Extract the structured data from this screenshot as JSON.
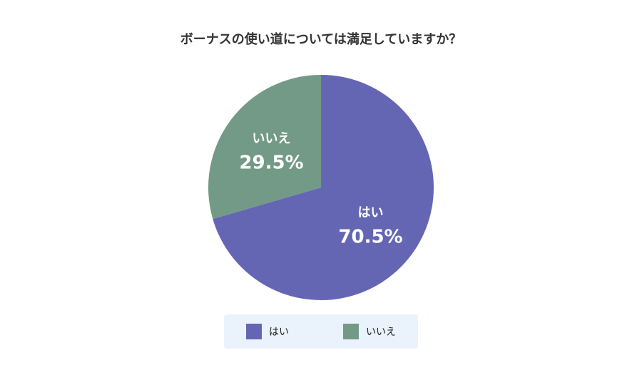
{
  "chart_data": {
    "type": "pie",
    "title": "ボーナスの使い道については満足していますか？",
    "categories": [
      "はい",
      "いいえ"
    ],
    "values": [
      70.5,
      29.5
    ],
    "value_labels": [
      "70.5%",
      "29.5%"
    ],
    "colors": [
      "#6466b4",
      "#739a86"
    ]
  }
}
